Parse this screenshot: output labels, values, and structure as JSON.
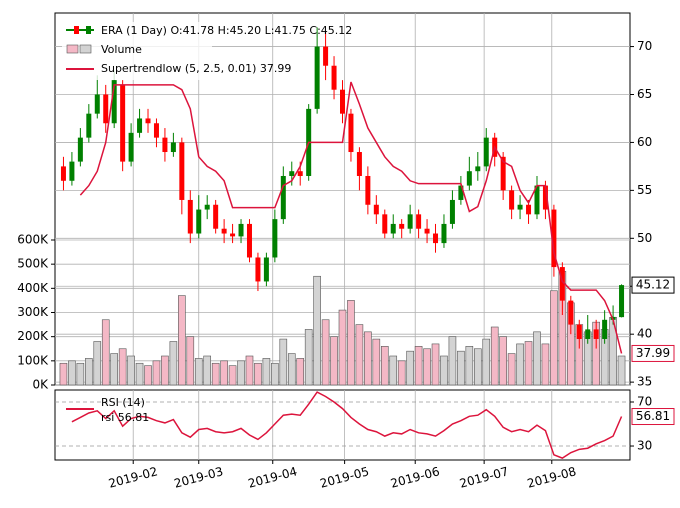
{
  "chart_data": [
    {
      "type": "candlestick",
      "name": "ERA (1 Day) O:41.78 H:45.20 L:41.75 C:45.12",
      "up_color": "#008000",
      "down_color": "#ff0000",
      "xlim": [
        -1,
        67
      ],
      "xticks": [
        {
          "value": 8.25,
          "label": "2019-02"
        },
        {
          "value": 16,
          "label": "2019-03"
        },
        {
          "value": 24.75,
          "label": "2019-04"
        },
        {
          "value": 33.25,
          "label": "2019-05"
        },
        {
          "value": 41.6,
          "label": "2019-06"
        },
        {
          "value": 49.75,
          "label": "2019-07"
        },
        {
          "value": 57.75,
          "label": "2019-08"
        }
      ],
      "open": [
        57.5,
        56,
        58,
        60.5,
        63,
        65,
        62,
        66,
        58,
        61,
        62.5,
        62,
        60.5,
        59,
        60,
        54,
        50.5,
        53,
        53.5,
        51,
        50.5,
        50.2,
        51.5,
        48,
        45.5,
        48,
        52,
        56.5,
        57,
        56.5,
        63.5,
        70,
        68,
        65.5,
        63,
        59,
        56.5,
        53.5,
        52.5,
        50.5,
        51.5,
        51,
        52.5,
        51,
        50.5,
        49.5,
        51.5,
        54,
        55.5,
        57,
        57.5,
        60.5,
        58.5,
        55,
        53,
        53.5,
        52.5,
        55.5,
        53,
        47,
        43.5,
        41,
        39.5,
        40.5,
        39.5,
        41.5,
        41.78
      ],
      "high": [
        58.5,
        59,
        61.5,
        64,
        67,
        66,
        67.5,
        66.5,
        62,
        63.5,
        63.5,
        62.5,
        61.5,
        61,
        60.5,
        55,
        54.5,
        54.5,
        54,
        52,
        51.5,
        52,
        52,
        48.5,
        48.5,
        53,
        57.5,
        58,
        58,
        64,
        72,
        71.5,
        69,
        66.5,
        63.5,
        59.5,
        57.5,
        54.5,
        53,
        52.5,
        52,
        53.5,
        53,
        52,
        51.5,
        52.5,
        55,
        56.5,
        58.5,
        59,
        61.5,
        61,
        59,
        55.5,
        54.5,
        54,
        56.5,
        56,
        53.5,
        47.5,
        44,
        41.5,
        42,
        41.5,
        42.5,
        43,
        45.2
      ],
      "low": [
        55,
        55.5,
        57.5,
        60,
        62.5,
        61,
        61.5,
        57,
        57.5,
        60.5,
        61,
        59.5,
        58,
        58.5,
        52.5,
        49.5,
        50,
        52,
        50.5,
        49.5,
        49.5,
        49.5,
        47.5,
        44.5,
        45,
        47.5,
        51.5,
        55.5,
        55.5,
        56,
        63,
        66.5,
        64.5,
        62,
        58,
        55,
        52.5,
        51.5,
        50,
        50,
        50,
        50.5,
        50,
        49.5,
        48.5,
        49,
        51,
        53.5,
        55,
        56,
        57,
        57.5,
        54,
        52,
        52,
        51.5,
        52,
        52,
        46,
        42,
        40,
        38.5,
        39,
        38.5,
        39,
        41,
        41.75
      ],
      "close": [
        56,
        58,
        60.5,
        63,
        65,
        62,
        66.5,
        58,
        61,
        62.5,
        62,
        60.5,
        59,
        60,
        54,
        50.5,
        53,
        53.5,
        51,
        50.5,
        50.2,
        51.5,
        48,
        45.5,
        48,
        52,
        56.5,
        57,
        56.5,
        63.5,
        70,
        68,
        65.5,
        63,
        59,
        56.5,
        53.5,
        52.5,
        50.5,
        51.5,
        51,
        52.5,
        51,
        50.5,
        49.5,
        51.5,
        54,
        55.5,
        57,
        57.5,
        60.5,
        58.5,
        55,
        53,
        53.5,
        52.5,
        55.5,
        53,
        47,
        43.5,
        41,
        39.5,
        40.5,
        39.5,
        41.5,
        41.8,
        45.12
      ],
      "close_label": "45.12",
      "ylim": [
        34.7,
        73.5
      ],
      "yticks": [
        35,
        40,
        45,
        50,
        55,
        60,
        65,
        70
      ],
      "grid": true,
      "volume": {
        "name": "Volume",
        "up_color": "#d3d3d3",
        "down_color": "#f4b8c6",
        "values": [
          90000,
          100000,
          90000,
          110000,
          180000,
          270000,
          130000,
          150000,
          120000,
          90000,
          80000,
          100000,
          120000,
          180000,
          370000,
          200000,
          110000,
          120000,
          90000,
          100000,
          80000,
          100000,
          120000,
          90000,
          110000,
          90000,
          190000,
          130000,
          110000,
          230000,
          450000,
          270000,
          200000,
          310000,
          350000,
          250000,
          220000,
          190000,
          160000,
          120000,
          100000,
          140000,
          160000,
          150000,
          170000,
          120000,
          200000,
          140000,
          160000,
          150000,
          190000,
          240000,
          200000,
          130000,
          170000,
          180000,
          220000,
          170000,
          390000,
          470000,
          340000,
          250000,
          220000,
          260000,
          230000,
          280000,
          120000
        ],
        "ylim": [
          0,
          1539310
        ],
        "yticks": [
          {
            "value": 0,
            "label": "0K"
          },
          {
            "value": 100000,
            "label": "100K"
          },
          {
            "value": 200000,
            "label": "200K"
          },
          {
            "value": 300000,
            "label": "300K"
          },
          {
            "value": 400000,
            "label": "400K"
          },
          {
            "value": 500000,
            "label": "500K"
          },
          {
            "value": 600000,
            "label": "600K"
          }
        ]
      },
      "supertrend": {
        "name": "Supertrendlow (5, 2.5, 0.01) 37.99",
        "color": "#dc143c",
        "label": "37.99",
        "values": [
          null,
          null,
          54.5,
          55.5,
          57,
          60,
          66,
          66,
          66,
          66,
          66,
          66,
          66,
          66,
          65.5,
          63.5,
          58.5,
          57.5,
          57,
          56,
          53.2,
          53.2,
          53.2,
          53.2,
          53.2,
          53.2,
          55.5,
          56,
          57.5,
          60,
          60,
          60,
          60,
          60,
          66.3,
          64,
          61.5,
          60,
          58.5,
          57.5,
          57,
          56,
          55.7,
          55.7,
          55.7,
          55.7,
          55.7,
          55.7,
          52.8,
          53.3,
          56,
          59.5,
          58,
          57.5,
          55,
          53.7,
          55.5,
          55.5,
          48.5,
          45.5,
          44.6,
          44.6,
          44.6,
          44.6,
          43.5,
          41.5,
          37.99
        ]
      }
    },
    {
      "type": "line",
      "name": "RSI (14)",
      "color": "#dc143c",
      "subtitle": "rsi 56.81",
      "label": "56.81",
      "values": [
        null,
        52,
        56,
        60,
        62,
        55,
        62,
        48,
        55,
        57,
        56,
        53,
        51,
        54,
        42,
        38,
        45,
        46,
        43,
        42,
        43,
        46,
        40,
        36,
        42,
        50,
        58,
        59,
        58,
        68,
        79,
        75,
        70,
        64,
        56,
        50,
        45,
        43,
        39,
        42,
        41,
        45,
        42,
        41,
        39,
        44,
        50,
        53,
        57,
        58,
        63,
        57,
        47,
        43,
        45,
        43,
        49,
        44,
        22,
        19,
        24,
        27,
        28,
        32,
        35,
        39,
        56.81
      ],
      "ylim": [
        17.3,
        80.9
      ],
      "yticks": [
        30,
        70
      ]
    }
  ]
}
